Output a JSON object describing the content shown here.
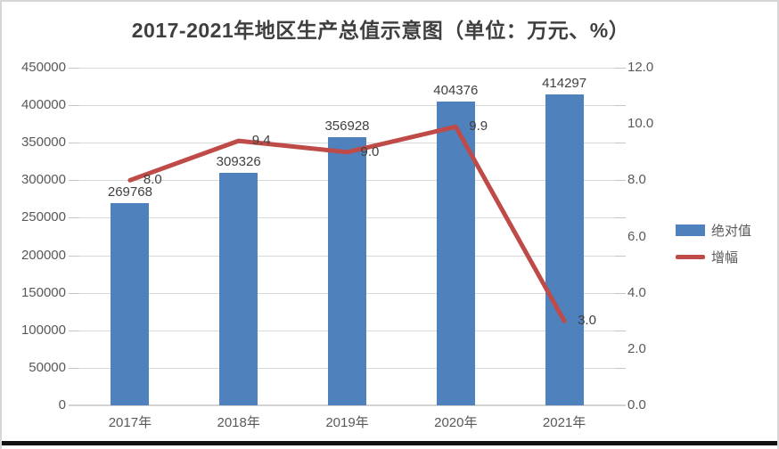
{
  "window": {
    "background": "#ffffff",
    "frame_border_color": "#d6d6d6",
    "bottom_rule_color": "#111111"
  },
  "chart_data": {
    "type": "bar",
    "subtype": "combo-bar-line-dual-axis",
    "title": "2017-2021年地区生产总值示意图（单位：万元、%）",
    "categories": [
      "2017年",
      "2018年",
      "2019年",
      "2020年",
      "2021年"
    ],
    "series": [
      {
        "name": "绝对值",
        "type": "bar",
        "axis": "left",
        "color": "#4f81bd",
        "values": [
          269768,
          309326,
          356928,
          404376,
          414297
        ],
        "labels": [
          "269768",
          "309326",
          "356928",
          "404376",
          "414297"
        ]
      },
      {
        "name": "增幅",
        "type": "line",
        "axis": "right",
        "color": "#be4b48",
        "values": [
          8.0,
          9.4,
          9.0,
          9.9,
          3.0
        ],
        "labels": [
          "8.0",
          "9.4",
          "9.0",
          "9.9",
          "3.0"
        ]
      }
    ],
    "left_axis": {
      "min": 0,
      "max": 450000,
      "step": 50000,
      "tick_labels": [
        "0",
        "50000",
        "100000",
        "150000",
        "200000",
        "250000",
        "300000",
        "350000",
        "400000",
        "450000"
      ]
    },
    "right_axis": {
      "min": 0,
      "max": 12,
      "step": 2,
      "tick_labels": [
        "0.0",
        "2.0",
        "4.0",
        "6.0",
        "8.0",
        "10.0",
        "12.0"
      ]
    },
    "legend": {
      "position": "right",
      "entries": [
        {
          "label": "绝对值",
          "swatch": "bar",
          "color": "#4f81bd"
        },
        {
          "label": "增幅",
          "swatch": "line",
          "color": "#be4b48"
        }
      ]
    },
    "grid": true,
    "colors": {
      "gridline": "#d9d9d9",
      "axis_line": "#d3d3d3",
      "tick": "#c6c6c6",
      "axis_text": "#595959",
      "data_label_text": "#404040",
      "title_text": "#3f3f3f"
    }
  }
}
